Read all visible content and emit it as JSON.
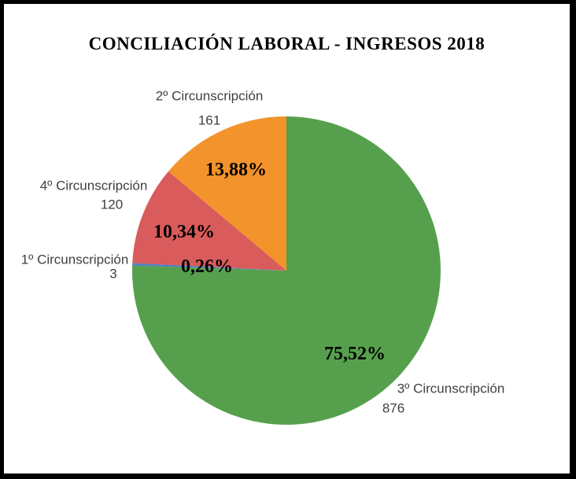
{
  "title": "CONCILIACIÓN LABORAL - INGRESOS 2018",
  "frame": {
    "border_color": "#000000",
    "background_color": "#ffffff"
  },
  "chart_data": {
    "type": "pie",
    "title": "CONCILIACIÓN LABORAL - INGRESOS 2018",
    "total": 1160,
    "start_angle_deg": 0,
    "direction": "clockwise",
    "legend_position": "none",
    "label_text_color": "#3f3f3f",
    "percent_text_color": "#000000",
    "slices": [
      {
        "label": "3º Circunscripción",
        "value": 876,
        "value_label": "876",
        "pct": 75.52,
        "pct_label": "75,52%",
        "color": "#56a04d"
      },
      {
        "label": "1º Circunscripción",
        "value": 3,
        "value_label": "3",
        "pct": 0.26,
        "pct_label": "0,26%",
        "color": "#4f81bd"
      },
      {
        "label": "4º Circunscripción",
        "value": 120,
        "value_label": "120",
        "pct": 10.34,
        "pct_label": "10,34%",
        "color": "#d95b5b"
      },
      {
        "label": "2º Circunscripción",
        "value": 161,
        "value_label": "161",
        "pct": 13.88,
        "pct_label": "13,88%",
        "color": "#f2932b"
      }
    ]
  }
}
